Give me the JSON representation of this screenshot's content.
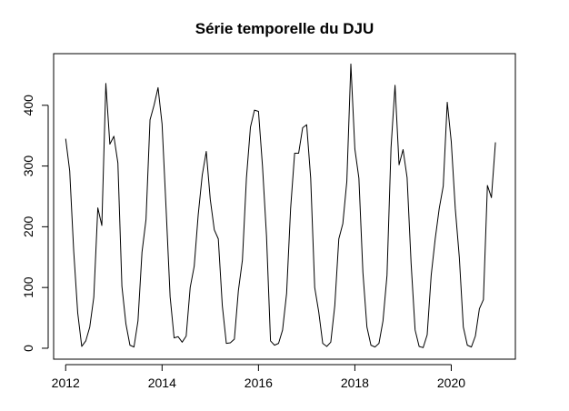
{
  "chart_data": {
    "type": "line",
    "title": "Série temporelle du DJU",
    "xlabel": "",
    "ylabel": "",
    "xlim": [
      2011.75,
      2021.33
    ],
    "ylim": [
      -18,
      485
    ],
    "x_ticks": [
      2012,
      2014,
      2016,
      2018,
      2020
    ],
    "x_tick_labels": [
      "2012",
      "2014",
      "2016",
      "2018",
      "2020"
    ],
    "y_ticks": [
      0,
      100,
      200,
      300,
      400
    ],
    "y_tick_labels": [
      "0",
      "100",
      "200",
      "300",
      "400"
    ],
    "grid": false,
    "legend": false,
    "x_start": 2012,
    "x_step": 0.0833333,
    "series": [
      {
        "values": [
          345,
          292,
          160,
          58,
          3,
          12,
          35,
          84,
          231,
          202,
          436,
          336,
          349,
          305,
          102,
          40,
          5,
          2,
          45,
          158,
          212,
          376,
          400,
          429,
          369,
          230,
          85,
          17,
          19,
          10,
          20,
          100,
          135,
          220,
          285,
          324,
          245,
          195,
          180,
          70,
          8,
          9,
          15,
          95,
          145,
          280,
          364,
          392,
          390,
          300,
          185,
          12,
          5,
          8,
          30,
          90,
          230,
          321,
          321,
          363,
          368,
          280,
          100,
          60,
          8,
          3,
          10,
          70,
          180,
          205,
          275,
          468,
          328,
          280,
          125,
          35,
          5,
          2,
          8,
          45,
          120,
          330,
          433,
          302,
          327,
          281,
          140,
          30,
          3,
          1,
          22,
          120,
          180,
          230,
          267,
          405,
          340,
          230,
          150,
          35,
          5,
          2,
          20,
          65,
          80,
          268,
          248,
          339
        ]
      }
    ]
  }
}
